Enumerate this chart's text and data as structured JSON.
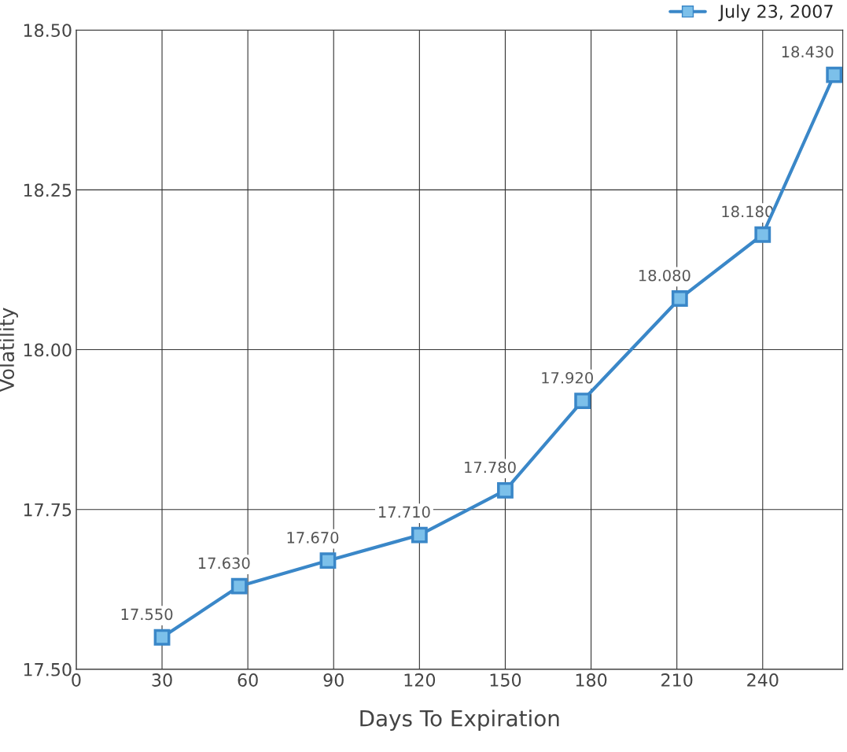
{
  "chart_data": {
    "type": "line",
    "xlabel": "Days To Expiration",
    "ylabel": "Volatility",
    "x": [
      30,
      57,
      88,
      120,
      150,
      177,
      211,
      240,
      265
    ],
    "series": [
      {
        "name": "July 23, 2007",
        "color": "#3a87c8",
        "values": [
          17.55,
          17.63,
          17.67,
          17.71,
          17.78,
          17.92,
          18.08,
          18.18,
          18.43
        ],
        "value_labels": [
          "17.550",
          "17.630",
          "17.670",
          "17.710",
          "17.780",
          "17.920",
          "18.080",
          "18.180",
          "18.430"
        ]
      }
    ],
    "xlim": [
      0,
      268
    ],
    "xticks": [
      0,
      30,
      60,
      90,
      120,
      150,
      180,
      210,
      240
    ],
    "ylim": [
      17.5,
      18.5
    ],
    "yticks": [
      {
        "value": 17.5,
        "label": "17.50"
      },
      {
        "value": 17.75,
        "label": "17.75"
      },
      {
        "value": 18.0,
        "label": "18.00"
      },
      {
        "value": 18.25,
        "label": "18.25"
      },
      {
        "value": 18.5,
        "label": "18.50"
      }
    ],
    "grid": true,
    "legend": "top right",
    "marker": "square",
    "line_style": "solid"
  }
}
